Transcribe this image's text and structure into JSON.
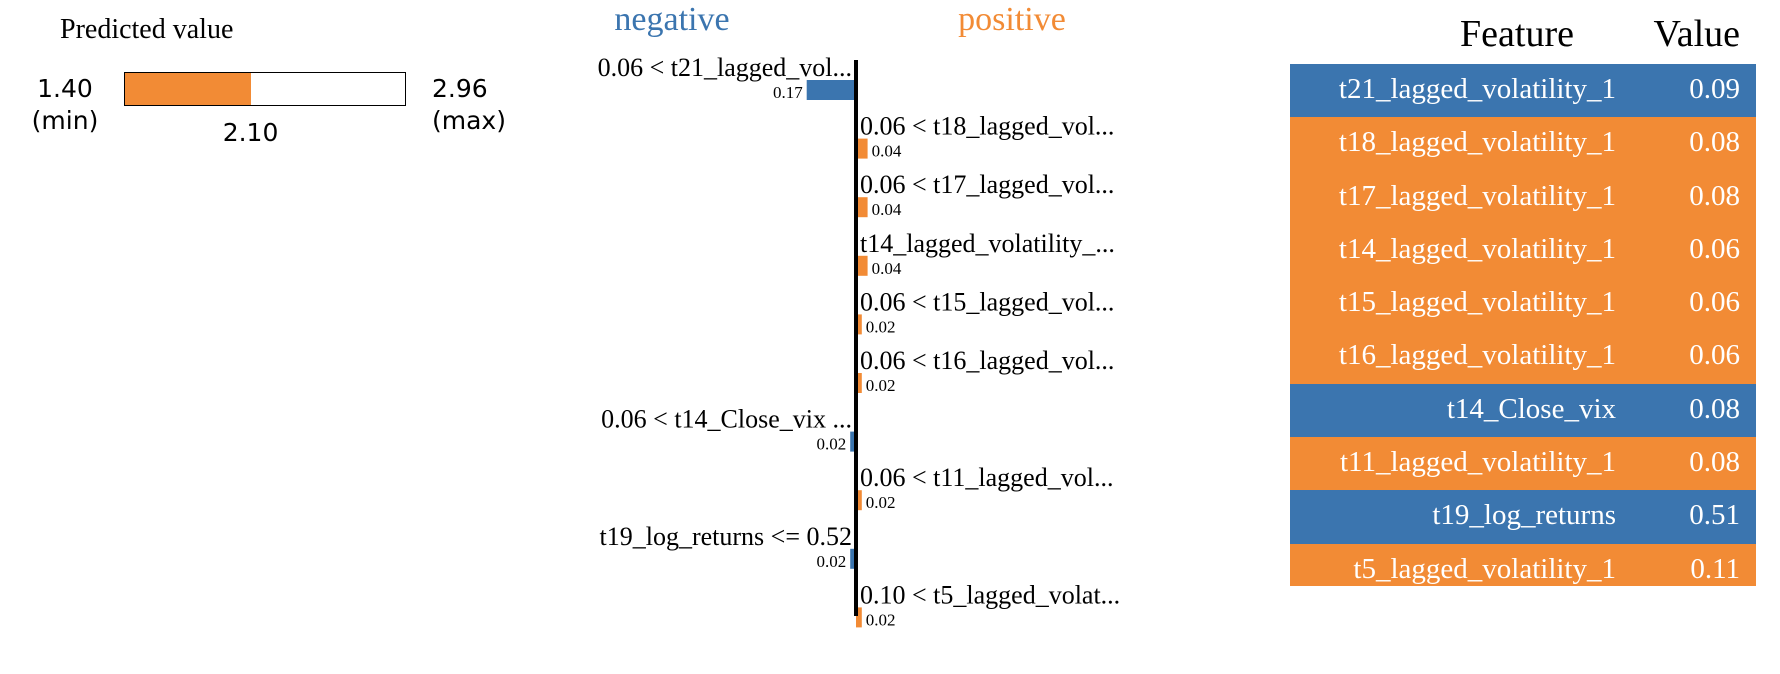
{
  "predicted": {
    "title": "Predicted value",
    "min": 1.4,
    "max": 2.96,
    "value": 2.1,
    "min_text": "1.40",
    "min_label": "(min)",
    "max_text": "2.96",
    "max_label": "(max)",
    "value_text": "2.10"
  },
  "colors": {
    "negative": "#3b75af",
    "positive": "#f28b35"
  },
  "chart_data": {
    "type": "bar",
    "orientation": "horizontal",
    "headers": {
      "negative": "negative",
      "positive": "positive"
    },
    "bars": [
      {
        "label": "0.06 < t21_lagged_vol...",
        "value": -0.17,
        "value_text": "0.17"
      },
      {
        "label": "0.06 < t18_lagged_vol...",
        "value": 0.04,
        "value_text": "0.04"
      },
      {
        "label": "0.06 < t17_lagged_vol...",
        "value": 0.04,
        "value_text": "0.04"
      },
      {
        "label": "t14_lagged_volatility_...",
        "value": 0.04,
        "value_text": "0.04"
      },
      {
        "label": "0.06 < t15_lagged_vol...",
        "value": 0.02,
        "value_text": "0.02"
      },
      {
        "label": "0.06 < t16_lagged_vol...",
        "value": 0.02,
        "value_text": "0.02"
      },
      {
        "label": "0.06 < t14_Close_vix ...",
        "value": -0.02,
        "value_text": "0.02"
      },
      {
        "label": "0.06 < t11_lagged_vol...",
        "value": 0.02,
        "value_text": "0.02"
      },
      {
        "label": "t19_log_returns <= 0.52",
        "value": -0.02,
        "value_text": "0.02"
      },
      {
        "label": "0.10 < t5_lagged_volat...",
        "value": 0.02,
        "value_text": "0.02"
      }
    ]
  },
  "table": {
    "headers": {
      "feature": "Feature",
      "value": "Value"
    },
    "rows": [
      {
        "feature": "t21_lagged_volatility_1",
        "value": "0.09",
        "sign": "negative"
      },
      {
        "feature": "t18_lagged_volatility_1",
        "value": "0.08",
        "sign": "positive"
      },
      {
        "feature": "t17_lagged_volatility_1",
        "value": "0.08",
        "sign": "positive"
      },
      {
        "feature": "t14_lagged_volatility_1",
        "value": "0.06",
        "sign": "positive"
      },
      {
        "feature": "t15_lagged_volatility_1",
        "value": "0.06",
        "sign": "positive"
      },
      {
        "feature": "t16_lagged_volatility_1",
        "value": "0.06",
        "sign": "positive"
      },
      {
        "feature": "t14_Close_vix",
        "value": "0.08",
        "sign": "negative"
      },
      {
        "feature": "t11_lagged_volatility_1",
        "value": "0.08",
        "sign": "positive"
      },
      {
        "feature": "t19_log_returns",
        "value": "0.51",
        "sign": "negative"
      },
      {
        "feature": "t5_lagged_volatility_1",
        "value": "0.11",
        "sign": "positive"
      }
    ]
  }
}
